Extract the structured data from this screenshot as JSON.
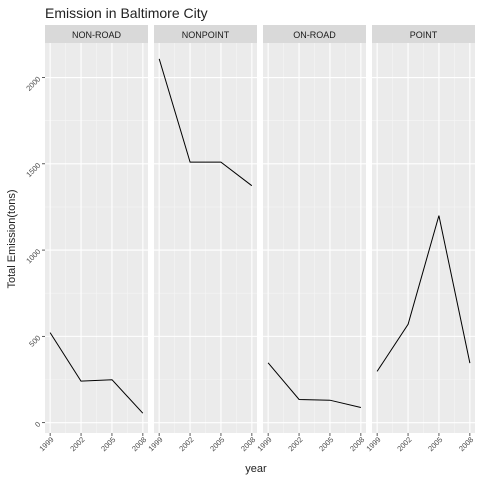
{
  "chart_data": {
    "type": "line",
    "title": "Emission in Baltimore City",
    "xlabel": "year",
    "ylabel": "Total Emission(tons)",
    "x": [
      1999,
      2002,
      2005,
      2008
    ],
    "x_tick_labels": [
      "1999",
      "2002",
      "2005",
      "2008"
    ],
    "y_ticks": [
      0,
      500,
      1000,
      1500,
      2000
    ],
    "y_tick_labels": [
      "0",
      "500",
      "1000",
      "1500",
      "2000"
    ],
    "ylim": [
      -60,
      2200
    ],
    "xlim": [
      1998.5,
      2008.5
    ],
    "grid": true,
    "line_color": "#000000",
    "panel_bg": "#ebebeb",
    "strip_bg": "#d9d9d9",
    "series": [
      {
        "name": "NON-ROAD",
        "values": [
          522,
          241,
          249,
          55
        ]
      },
      {
        "name": "NONPOINT",
        "values": [
          2108,
          1510,
          1510,
          1373
        ]
      },
      {
        "name": "ON-ROAD",
        "values": [
          347,
          134,
          130,
          88
        ]
      },
      {
        "name": "POINT",
        "values": [
          297,
          570,
          1200,
          345
        ]
      }
    ]
  }
}
